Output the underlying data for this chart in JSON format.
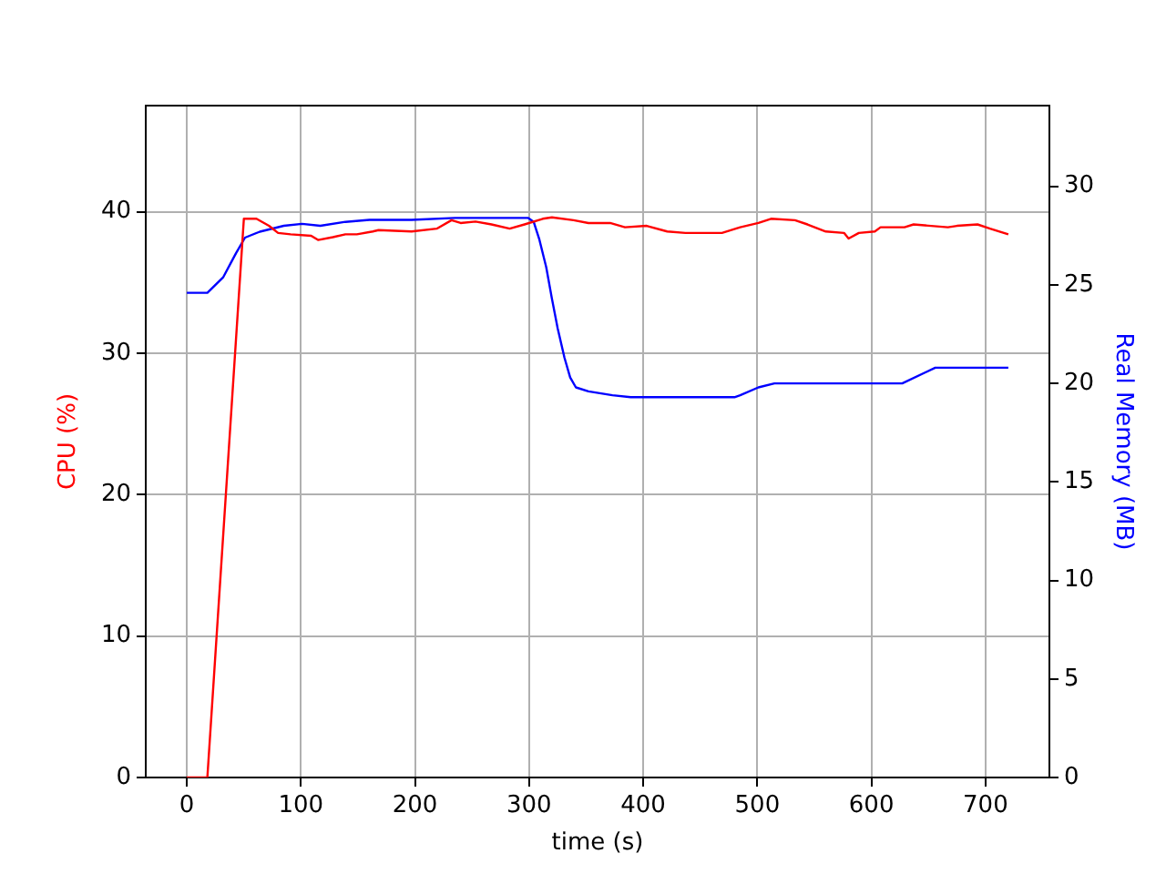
{
  "chart_data": {
    "type": "line",
    "xlabel": "time (s)",
    "ylabel": "CPU (%)",
    "y2label": "Real Memory (MB)",
    "xlim": [
      -36,
      756
    ],
    "xticks": [
      0,
      100,
      200,
      300,
      400,
      500,
      600,
      700
    ],
    "ylim": [
      0,
      47.5
    ],
    "yticks": [
      0,
      10,
      20,
      30,
      40
    ],
    "y2lim": [
      0,
      34.1
    ],
    "y2ticks": [
      0,
      5,
      10,
      15,
      20,
      25,
      30
    ],
    "grid": true,
    "legend": false,
    "series": [
      {
        "color": "#ff0000",
        "x": [
          0,
          18,
          50,
          61,
          72,
          80,
          91,
          109,
          115,
          128,
          139,
          149,
          163,
          168,
          197,
          219,
          232,
          240,
          253,
          267,
          283,
          296,
          312,
          320,
          339,
          352,
          371,
          384,
          403,
          421,
          437,
          469,
          485,
          501,
          512,
          533,
          544,
          560,
          576,
          580,
          589,
          603,
          608,
          629,
          637,
          667,
          675,
          693,
          704,
          720
        ],
        "values": [
          0,
          0,
          39.5,
          39.5,
          39.0,
          38.5,
          38.4,
          38.3,
          38.0,
          38.2,
          38.4,
          38.4,
          38.6,
          38.7,
          38.6,
          38.8,
          39.4,
          39.2,
          39.3,
          39.1,
          38.8,
          39.1,
          39.5,
          39.6,
          39.4,
          39.2,
          39.2,
          38.9,
          39.0,
          38.6,
          38.5,
          38.5,
          38.9,
          39.2,
          39.5,
          39.4,
          39.1,
          38.6,
          38.5,
          38.1,
          38.5,
          38.6,
          38.9,
          38.9,
          39.1,
          38.9,
          39.0,
          39.1,
          38.8,
          38.4
        ]
      },
      {
        "color": "#0000ff",
        "axis": "y2",
        "x": [
          0,
          18,
          32,
          43,
          51,
          64,
          85,
          101,
          117,
          139,
          160,
          197,
          235,
          299,
          304,
          309,
          315,
          320,
          325,
          331,
          336,
          341,
          352,
          373,
          389,
          480,
          485,
          501,
          515,
          627,
          656,
          720
        ],
        "values": [
          24.6,
          24.6,
          25.4,
          26.6,
          27.4,
          27.7,
          28.0,
          28.1,
          28.0,
          28.2,
          28.3,
          28.3,
          28.4,
          28.4,
          28.2,
          27.3,
          25.9,
          24.3,
          22.8,
          21.3,
          20.3,
          19.8,
          19.6,
          19.4,
          19.3,
          19.3,
          19.4,
          19.8,
          20.0,
          20.0,
          20.8,
          20.8
        ]
      }
    ]
  }
}
